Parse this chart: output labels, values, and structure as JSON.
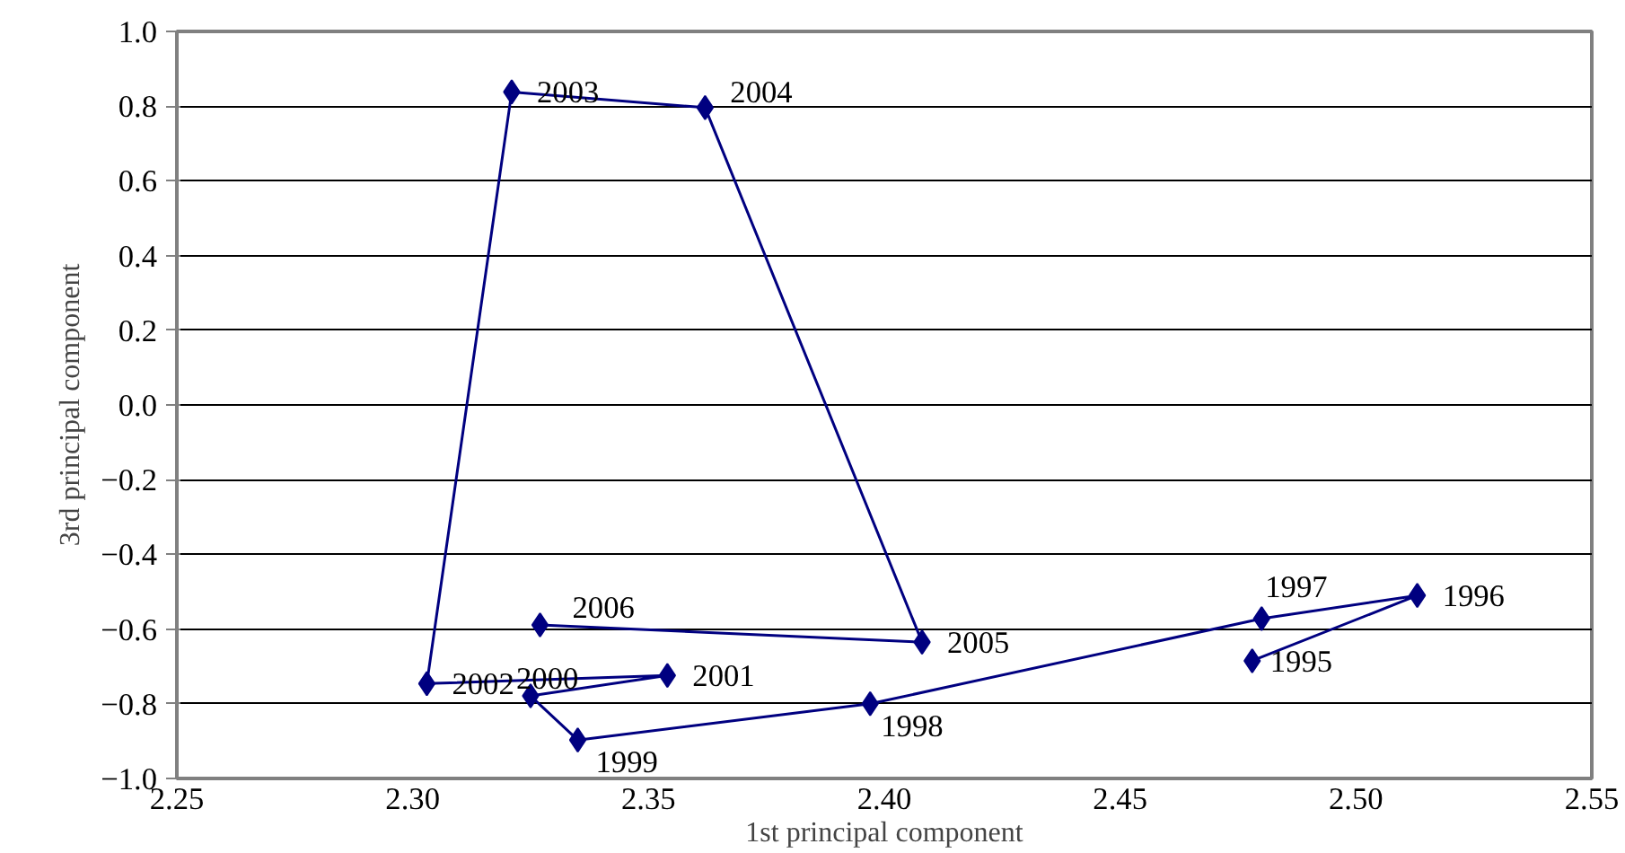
{
  "chart_data": {
    "type": "line",
    "xlabel": "1st principal component",
    "ylabel": "3rd principal component",
    "series": [
      {
        "color": "#000080",
        "x": [
          2.478,
          2.513,
          2.48,
          2.397,
          2.335,
          2.325,
          2.354,
          2.303,
          2.321,
          2.362,
          2.408,
          2.327
        ],
        "values": [
          -0.685,
          -0.51,
          -0.572,
          -0.8,
          -0.897,
          -0.779,
          -0.724,
          -0.746,
          0.838,
          0.796,
          -0.635,
          -0.589
        ]
      }
    ],
    "annotations": [
      {
        "text": "1995",
        "x": 2.478,
        "y": -0.685
      },
      {
        "text": "1996",
        "x": 2.513,
        "y": -0.51
      },
      {
        "text": "1997",
        "x": 2.48,
        "y": -0.572
      },
      {
        "text": "1998",
        "x": 2.397,
        "y": -0.8
      },
      {
        "text": "1999",
        "x": 2.335,
        "y": -0.897
      },
      {
        "text": "2000",
        "x": 2.325,
        "y": -0.779
      },
      {
        "text": "2001",
        "x": 2.354,
        "y": -0.724
      },
      {
        "text": "2002",
        "x": 2.303,
        "y": -0.746
      },
      {
        "text": "2003",
        "x": 2.321,
        "y": 0.838
      },
      {
        "text": "2004",
        "x": 2.362,
        "y": 0.796
      },
      {
        "text": "2005",
        "x": 2.408,
        "y": -0.635
      },
      {
        "text": "2006",
        "x": 2.327,
        "y": -0.589
      }
    ],
    "marker": "diamond",
    "line_style": "solid",
    "grid": "y",
    "xlim": [
      2.25,
      2.55
    ],
    "xticks": [
      {
        "value": 2.25,
        "label": "2.25"
      },
      {
        "value": 2.3,
        "label": "2.30"
      },
      {
        "value": 2.35,
        "label": "2.35"
      },
      {
        "value": 2.4,
        "label": "2.40"
      },
      {
        "value": 2.45,
        "label": "2.45"
      },
      {
        "value": 2.5,
        "label": "2.50"
      },
      {
        "value": 2.55,
        "label": "2.55"
      }
    ],
    "ylim": [
      -1.0,
      1.0
    ],
    "yticks": [
      {
        "value": -1.0,
        "label": "−1.0"
      },
      {
        "value": -0.8,
        "label": "−0.8"
      },
      {
        "value": -0.6,
        "label": "−0.6"
      },
      {
        "value": -0.4,
        "label": "−0.4"
      },
      {
        "value": -0.2,
        "label": "−0.2"
      },
      {
        "value": 0.0,
        "label": "0.0"
      },
      {
        "value": 0.2,
        "label": "0.2"
      },
      {
        "value": 0.4,
        "label": "0.4"
      },
      {
        "value": 0.6,
        "label": "0.6"
      },
      {
        "value": 0.8,
        "label": "0.8"
      },
      {
        "value": 1.0,
        "label": "1.0"
      }
    ]
  }
}
